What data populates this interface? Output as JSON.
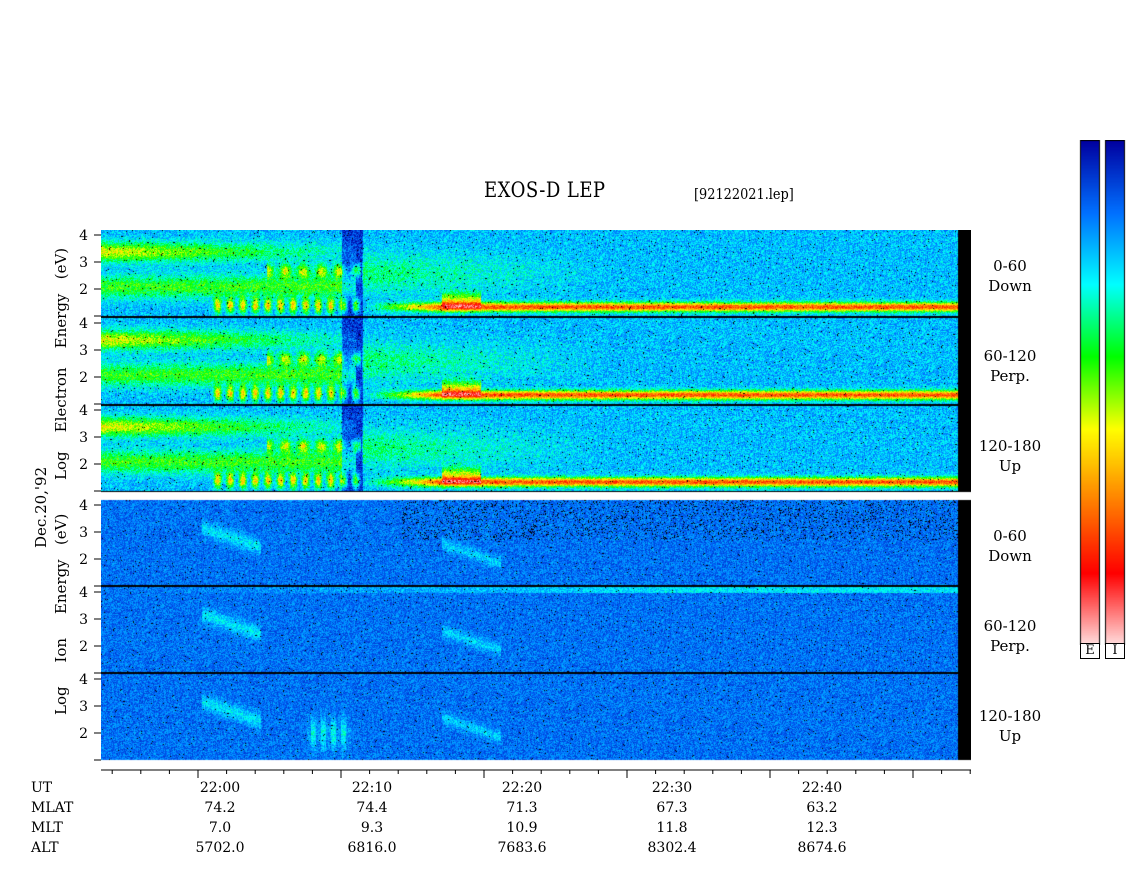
{
  "title": "EXOS-D LEP",
  "file": "[92122021.lep]",
  "date_label": "Dec.20,'92",
  "side_labels": {
    "electron": [
      "Log",
      "Electron",
      "Energy",
      "(eV)"
    ],
    "ion": [
      "Log",
      "Ion",
      "Energy",
      "(eV)"
    ]
  },
  "channels": [
    {
      "range": "0-60",
      "dir": "Down"
    },
    {
      "range": "60-120",
      "dir": "Perp."
    },
    {
      "range": "120-180",
      "dir": "Up"
    },
    {
      "range": "0-60",
      "dir": "Down"
    },
    {
      "range": "60-120",
      "dir": "Perp."
    },
    {
      "range": "120-180",
      "dir": "Up"
    }
  ],
  "yticks": [
    "4",
    "3",
    "2"
  ],
  "colorbar": {
    "labels": [
      "E",
      "I"
    ]
  },
  "bottom_table": {
    "row_labels": [
      "UT",
      "MLAT",
      "MLT",
      "ALT"
    ],
    "columns": [
      {
        "UT": "22:00",
        "MLAT": "74.2",
        "MLT": "7.0",
        "ALT": "5702.0"
      },
      {
        "UT": "22:10",
        "MLAT": "74.4",
        "MLT": "9.3",
        "ALT": "6816.0"
      },
      {
        "UT": "22:20",
        "MLAT": "71.3",
        "MLT": "10.9",
        "ALT": "7683.6"
      },
      {
        "UT": "22:30",
        "MLAT": "67.3",
        "MLT": "11.8",
        "ALT": "8302.4"
      },
      {
        "UT": "22:40",
        "MLAT": "63.2",
        "MLT": "12.3",
        "ALT": "8674.6"
      }
    ]
  },
  "chart_data": {
    "type": "heatmap",
    "title": "EXOS-D LEP",
    "xlabel": "UT",
    "x_ticks": [
      "22:00",
      "22:10",
      "22:20",
      "22:30",
      "22:40"
    ],
    "ylabel": "Log Energy (eV)",
    "y_ticks": [
      4,
      3,
      2
    ],
    "ylim": [
      1,
      4.2
    ],
    "panels": [
      {
        "species": "Electron",
        "pitch_angle": "0-60",
        "direction": "Down"
      },
      {
        "species": "Electron",
        "pitch_angle": "60-120",
        "direction": "Perp."
      },
      {
        "species": "Electron",
        "pitch_angle": "120-180",
        "direction": "Up"
      },
      {
        "species": "Ion",
        "pitch_angle": "0-60",
        "direction": "Down"
      },
      {
        "species": "Ion",
        "pitch_angle": "60-120",
        "direction": "Perp."
      },
      {
        "species": "Ion",
        "pitch_angle": "120-180",
        "direction": "Up"
      }
    ],
    "colormap": [
      "#ffe0e0",
      "#ff0000",
      "#ff8000",
      "#ffff00",
      "#00ff00",
      "#00ffff",
      "#0070ff",
      "#0000a0"
    ]
  }
}
